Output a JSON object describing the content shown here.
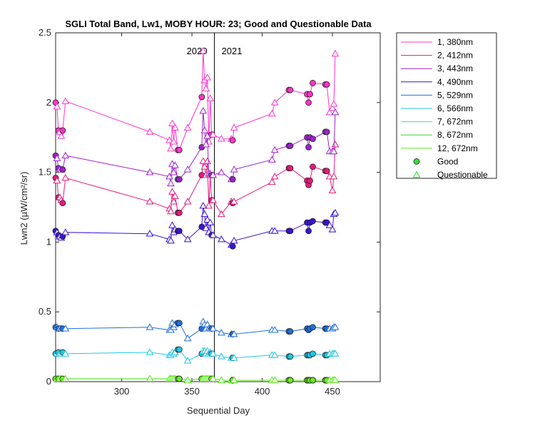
{
  "chart_data": {
    "type": "line",
    "title": "SGLI Total Band, Lw1, MOBY HOUR: 23;  Good and Questionable Data",
    "xlabel": "Sequential Day",
    "ylabel": "Lwn2 (µW/cm²/sr)",
    "xlim": [
      253,
      484
    ],
    "ylim": [
      0,
      2.5
    ],
    "xticks": [
      300,
      350,
      400,
      450
    ],
    "yticks": [
      0,
      0.5,
      1,
      1.5,
      2,
      2.5
    ],
    "xtick_labels": [
      "300",
      "350",
      "400",
      "450"
    ],
    "ytick_labels": [
      "0",
      "0.5",
      "1",
      "1.5",
      "2",
      "2.5"
    ],
    "grid": false,
    "legend_position": "outside-top-right",
    "year_divider": {
      "x": 366,
      "labels": [
        "2020",
        "2021"
      ]
    },
    "x": [
      253,
      254,
      255,
      256,
      257,
      258,
      260,
      320,
      334,
      335,
      336,
      337,
      338,
      340,
      341,
      347,
      357,
      358,
      359,
      360,
      361,
      362,
      363,
      364,
      365,
      371,
      378,
      379,
      380,
      407,
      409,
      419,
      420,
      432,
      433,
      434,
      436,
      445,
      446,
      448,
      450,
      451,
      452
    ],
    "series": [
      {
        "name": "1, 380nm",
        "color": "#ff33cc",
        "values": [
          2.0,
          1.97,
          1.8,
          1.79,
          1.76,
          1.8,
          2.01,
          1.79,
          1.73,
          1.67,
          1.85,
          1.72,
          1.82,
          1.66,
          1.66,
          1.82,
          2.04,
          2.37,
          2.16,
          2.1,
          2.18,
          1.72,
          2.03,
          1.77,
          1.77,
          1.74,
          1.74,
          1.73,
          1.82,
          1.92,
          2.0,
          2.09,
          2.09,
          2.06,
          2.0,
          2.06,
          2.14,
          2.13,
          2.13,
          1.93,
          1.96,
          1.99,
          2.35
        ],
        "status": [
          "G",
          "Q",
          "G",
          "Q",
          "Q",
          "G",
          "Q",
          "Q",
          "Q",
          "Q",
          "Q",
          "Q",
          "Q",
          "G",
          "G",
          "Q",
          "G",
          "Q",
          "Q",
          "Q",
          "Q",
          "Q",
          "Q",
          "G",
          "Q",
          "Q",
          "Q",
          "G",
          "Q",
          "Q",
          "Q",
          "G",
          "G",
          "G",
          "G",
          "G",
          "G",
          "G",
          "G",
          "Q",
          "Q",
          "Q",
          "Q"
        ]
      },
      {
        "name": "2, 412nm",
        "color": "#e6197d",
        "values": [
          1.46,
          1.44,
          1.32,
          1.32,
          1.3,
          1.28,
          1.46,
          1.29,
          1.24,
          1.22,
          1.36,
          1.29,
          1.33,
          1.21,
          1.21,
          1.29,
          1.48,
          1.58,
          1.54,
          1.48,
          1.58,
          1.26,
          1.48,
          1.3,
          1.3,
          1.2,
          1.29,
          1.28,
          1.29,
          1.43,
          1.47,
          1.53,
          1.53,
          1.44,
          1.41,
          1.44,
          1.54,
          1.51,
          1.51,
          1.47,
          1.37,
          1.47,
          1.7
        ],
        "status": [
          "G",
          "Q",
          "G",
          "Q",
          "Q",
          "G",
          "Q",
          "Q",
          "Q",
          "Q",
          "Q",
          "Q",
          "Q",
          "G",
          "G",
          "Q",
          "G",
          "Q",
          "Q",
          "Q",
          "Q",
          "Q",
          "Q",
          "G",
          "Q",
          "Q",
          "Q",
          "G",
          "Q",
          "Q",
          "Q",
          "G",
          "G",
          "G",
          "G",
          "G",
          "G",
          "G",
          "G",
          "Q",
          "Q",
          "Q",
          "Q"
        ]
      },
      {
        "name": "3, 443nm",
        "color": "#a020d0",
        "values": [
          1.62,
          1.6,
          1.53,
          1.52,
          1.52,
          1.52,
          1.62,
          1.5,
          1.47,
          1.42,
          1.56,
          1.5,
          1.55,
          1.45,
          1.45,
          1.52,
          1.68,
          1.94,
          1.8,
          1.7,
          1.76,
          1.49,
          1.49,
          1.48,
          1.48,
          1.5,
          1.45,
          1.45,
          1.52,
          1.59,
          1.66,
          1.69,
          1.69,
          1.75,
          1.68,
          1.75,
          1.74,
          1.79,
          1.79,
          1.65,
          1.65,
          1.65,
          1.93
        ],
        "status": [
          "G",
          "Q",
          "G",
          "Q",
          "Q",
          "G",
          "Q",
          "Q",
          "Q",
          "Q",
          "Q",
          "Q",
          "Q",
          "G",
          "G",
          "Q",
          "G",
          "Q",
          "Q",
          "Q",
          "Q",
          "Q",
          "Q",
          "G",
          "Q",
          "Q",
          "Q",
          "G",
          "Q",
          "Q",
          "Q",
          "G",
          "G",
          "G",
          "G",
          "G",
          "G",
          "G",
          "G",
          "Q",
          "Q",
          "Q",
          "Q"
        ]
      },
      {
        "name": "4, 490nm",
        "color": "#3a12d8",
        "values": [
          1.08,
          1.07,
          1.05,
          1.04,
          1.03,
          1.04,
          1.07,
          1.06,
          1.02,
          1.01,
          1.12,
          1.07,
          1.09,
          1.08,
          1.08,
          1.02,
          1.11,
          1.26,
          1.2,
          1.1,
          1.16,
          1.07,
          1.14,
          1.05,
          1.05,
          1.02,
          0.98,
          0.97,
          1.01,
          1.08,
          1.08,
          1.08,
          1.08,
          1.14,
          1.08,
          1.14,
          1.15,
          1.14,
          1.14,
          1.12,
          1.09,
          1.2,
          1.21
        ],
        "status": [
          "G",
          "Q",
          "G",
          "Q",
          "Q",
          "G",
          "Q",
          "Q",
          "Q",
          "Q",
          "Q",
          "Q",
          "Q",
          "G",
          "G",
          "Q",
          "G",
          "Q",
          "Q",
          "Q",
          "Q",
          "Q",
          "Q",
          "G",
          "Q",
          "Q",
          "Q",
          "G",
          "Q",
          "Q",
          "Q",
          "G",
          "G",
          "G",
          "G",
          "G",
          "G",
          "G",
          "G",
          "Q",
          "Q",
          "Q",
          "Q"
        ]
      },
      {
        "name": "5, 529nm",
        "color": "#1f6fe0",
        "values": [
          0.39,
          0.39,
          0.38,
          0.38,
          0.38,
          0.38,
          0.38,
          0.39,
          0.37,
          0.37,
          0.42,
          0.39,
          0.41,
          0.42,
          0.42,
          0.31,
          0.38,
          0.43,
          0.41,
          0.38,
          0.41,
          0.38,
          0.38,
          0.38,
          0.38,
          0.35,
          0.34,
          0.34,
          0.34,
          0.37,
          0.37,
          0.36,
          0.36,
          0.38,
          0.37,
          0.38,
          0.39,
          0.38,
          0.38,
          0.38,
          0.38,
          0.39,
          0.39
        ],
        "status": [
          "G",
          "Q",
          "G",
          "Q",
          "Q",
          "G",
          "Q",
          "Q",
          "Q",
          "Q",
          "Q",
          "Q",
          "Q",
          "G",
          "G",
          "Q",
          "G",
          "Q",
          "Q",
          "Q",
          "Q",
          "Q",
          "Q",
          "G",
          "Q",
          "Q",
          "Q",
          "G",
          "Q",
          "Q",
          "Q",
          "G",
          "G",
          "G",
          "G",
          "G",
          "G",
          "G",
          "G",
          "Q",
          "Q",
          "Q",
          "Q"
        ]
      },
      {
        "name": "6, 566nm",
        "color": "#1ec8e6",
        "values": [
          0.2,
          0.2,
          0.21,
          0.2,
          0.2,
          0.21,
          0.2,
          0.21,
          0.19,
          0.19,
          0.21,
          0.2,
          0.21,
          0.23,
          0.23,
          0.15,
          0.2,
          0.22,
          0.22,
          0.2,
          0.22,
          0.2,
          0.21,
          0.2,
          0.2,
          0.18,
          0.17,
          0.17,
          0.17,
          0.19,
          0.19,
          0.18,
          0.18,
          0.19,
          0.19,
          0.19,
          0.2,
          0.19,
          0.19,
          0.2,
          0.2,
          0.2,
          0.2
        ],
        "status": [
          "G",
          "Q",
          "G",
          "Q",
          "Q",
          "G",
          "Q",
          "Q",
          "Q",
          "Q",
          "Q",
          "Q",
          "Q",
          "G",
          "G",
          "Q",
          "G",
          "Q",
          "Q",
          "Q",
          "Q",
          "Q",
          "Q",
          "G",
          "Q",
          "Q",
          "Q",
          "G",
          "Q",
          "Q",
          "Q",
          "G",
          "G",
          "G",
          "G",
          "G",
          "G",
          "G",
          "G",
          "Q",
          "Q",
          "Q",
          "Q"
        ]
      },
      {
        "name": "7, 672nm",
        "color": "#33e0c0",
        "values": [
          0.02,
          0.02,
          0.02,
          0.02,
          0.02,
          0.02,
          0.02,
          0.02,
          0.02,
          0.02,
          0.02,
          0.02,
          0.02,
          0.02,
          0.02,
          0.01,
          0.02,
          0.02,
          0.02,
          0.02,
          0.02,
          0.02,
          0.02,
          0.02,
          0.02,
          0.01,
          0.01,
          0.01,
          0.01,
          0.01,
          0.01,
          0.01,
          0.01,
          0.01,
          0.01,
          0.01,
          0.01,
          0.01,
          0.01,
          0.01,
          0.01,
          0.01,
          0.01
        ],
        "status": [
          "G",
          "Q",
          "G",
          "Q",
          "Q",
          "G",
          "Q",
          "Q",
          "Q",
          "Q",
          "Q",
          "Q",
          "Q",
          "G",
          "G",
          "Q",
          "G",
          "Q",
          "Q",
          "Q",
          "Q",
          "Q",
          "Q",
          "G",
          "Q",
          "Q",
          "Q",
          "G",
          "Q",
          "Q",
          "Q",
          "G",
          "G",
          "G",
          "G",
          "G",
          "G",
          "G",
          "G",
          "Q",
          "Q",
          "Q",
          "Q"
        ]
      },
      {
        "name": "8, 672nm",
        "color": "#33dd33",
        "values": [
          0.02,
          0.02,
          0.02,
          0.02,
          0.02,
          0.02,
          0.02,
          0.02,
          0.02,
          0.02,
          0.02,
          0.02,
          0.02,
          0.02,
          0.02,
          0.01,
          0.02,
          0.02,
          0.02,
          0.02,
          0.02,
          0.02,
          0.02,
          0.02,
          0.02,
          0.01,
          0.01,
          0.01,
          0.01,
          0.01,
          0.01,
          0.01,
          0.01,
          0.01,
          0.01,
          0.01,
          0.01,
          0.01,
          0.01,
          0.01,
          0.01,
          0.01,
          0.01
        ],
        "status": [
          "G",
          "Q",
          "G",
          "Q",
          "Q",
          "G",
          "Q",
          "Q",
          "Q",
          "Q",
          "Q",
          "Q",
          "Q",
          "G",
          "G",
          "Q",
          "G",
          "Q",
          "Q",
          "Q",
          "Q",
          "Q",
          "Q",
          "G",
          "Q",
          "Q",
          "Q",
          "G",
          "Q",
          "Q",
          "Q",
          "G",
          "G",
          "G",
          "G",
          "G",
          "G",
          "G",
          "G",
          "Q",
          "Q",
          "Q",
          "Q"
        ]
      },
      {
        "name": "12, 672nm",
        "color": "#66ee22",
        "values": [
          0.02,
          0.02,
          0.02,
          0.02,
          0.02,
          0.02,
          0.02,
          0.02,
          0.02,
          0.02,
          0.02,
          0.02,
          0.02,
          0.02,
          0.02,
          0.01,
          0.02,
          0.02,
          0.02,
          0.02,
          0.02,
          0.02,
          0.02,
          0.02,
          0.02,
          0.01,
          0.01,
          0.01,
          0.01,
          0.01,
          0.01,
          0.01,
          0.01,
          0.01,
          0.01,
          0.01,
          0.01,
          0.01,
          0.01,
          0.01,
          0.01,
          0.01,
          0.01
        ],
        "status": [
          "G",
          "Q",
          "G",
          "Q",
          "Q",
          "G",
          "Q",
          "Q",
          "Q",
          "Q",
          "Q",
          "Q",
          "Q",
          "G",
          "G",
          "Q",
          "G",
          "Q",
          "Q",
          "Q",
          "Q",
          "Q",
          "Q",
          "G",
          "Q",
          "Q",
          "Q",
          "G",
          "Q",
          "Q",
          "Q",
          "G",
          "G",
          "G",
          "G",
          "G",
          "G",
          "G",
          "G",
          "Q",
          "Q",
          "Q",
          "Q"
        ]
      }
    ],
    "legend": {
      "series_entries": [
        "1, 380nm",
        "2, 412nm",
        "3, 443nm",
        "4, 490nm",
        "5, 529nm",
        "6, 566nm",
        "7, 672nm",
        "8, 672nm",
        "12, 672nm"
      ],
      "marker_entries": [
        {
          "label": "Good",
          "marker": "circle",
          "color": "#33dd33"
        },
        {
          "label": "Questionable",
          "marker": "triangle",
          "color": "#33dd33"
        }
      ]
    }
  }
}
